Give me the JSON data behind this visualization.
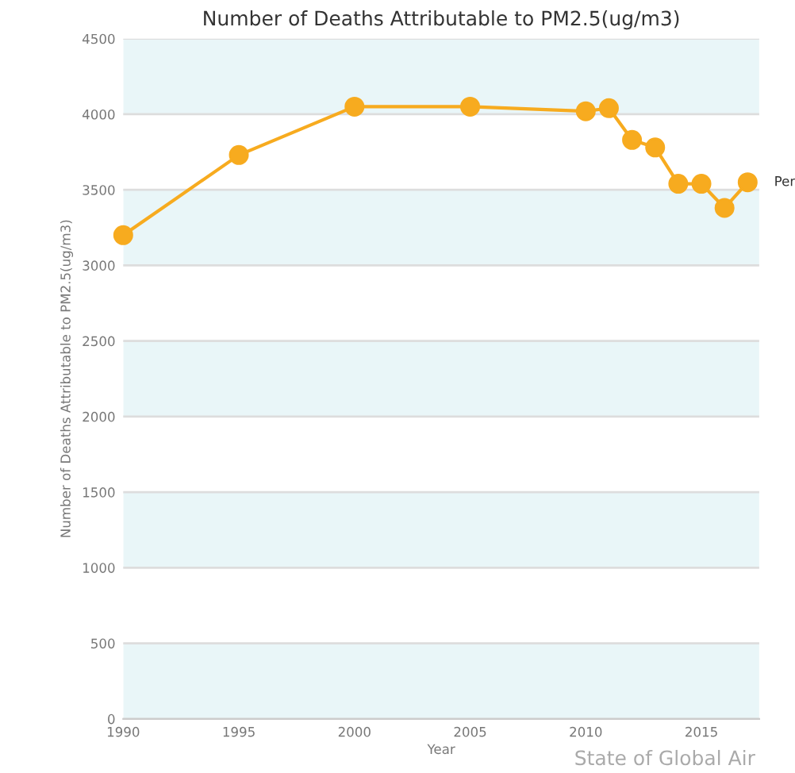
{
  "chart_data": {
    "type": "line",
    "title": "Number of Deaths Attributable to PM2.5(ug/m3)",
    "xlabel": "Year",
    "ylabel": "Number of Deaths Attributable to PM2.5(ug/m3)",
    "x": [
      1990,
      1995,
      2000,
      2005,
      2010,
      2011,
      2012,
      2013,
      2014,
      2015,
      2016,
      2017
    ],
    "series": [
      {
        "name": "Per",
        "color": "#f7ab1f",
        "values": [
          3200,
          3730,
          4050,
          4050,
          4020,
          4040,
          3830,
          3780,
          3540,
          3540,
          3380,
          3550
        ]
      }
    ],
    "xlim": [
      1990,
      2017.5
    ],
    "xticks": [
      1990,
      1995,
      2000,
      2005,
      2010,
      2015
    ],
    "ylim": [
      0,
      4500
    ],
    "yticks": [
      0,
      500,
      1000,
      1500,
      2000,
      2500,
      3000,
      3500,
      4000,
      4500
    ],
    "bands": [
      {
        "axis": "y",
        "from": 0,
        "to": 500,
        "color": "#e9f6f8"
      },
      {
        "axis": "y",
        "from": 1000,
        "to": 1500,
        "color": "#e9f6f8"
      },
      {
        "axis": "y",
        "from": 2000,
        "to": 2500,
        "color": "#e9f6f8"
      },
      {
        "axis": "y",
        "from": 3000,
        "to": 3500,
        "color": "#e9f6f8"
      },
      {
        "axis": "y",
        "from": 4000,
        "to": 4500,
        "color": "#e9f6f8"
      }
    ],
    "grid": "y",
    "marker": "circle",
    "line_style": "solid",
    "annotations": [
      "State of Global Air"
    ]
  }
}
